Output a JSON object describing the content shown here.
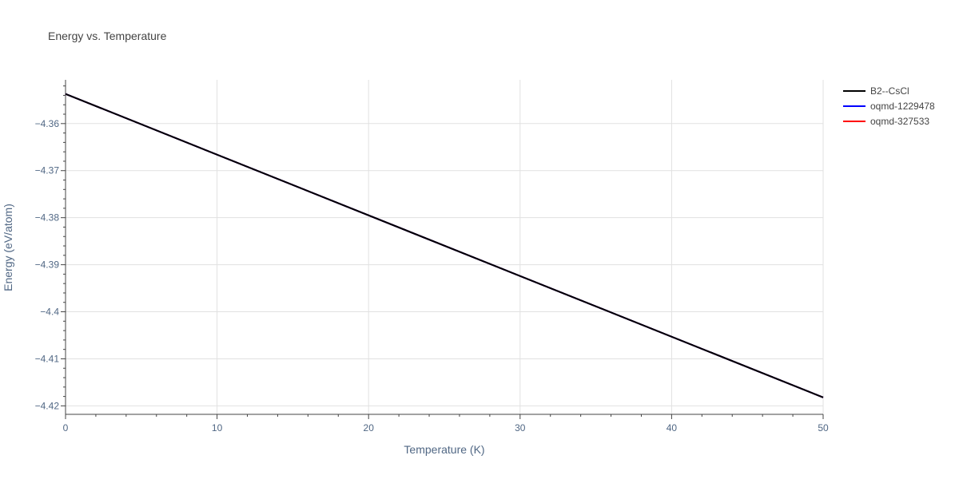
{
  "chart_data": {
    "type": "line",
    "title": "Energy vs. Temperature",
    "xlabel": "Temperature (K)",
    "ylabel": "Energy (eV/atom)",
    "xlim": [
      0,
      50
    ],
    "ylim": [
      -4.4218,
      -4.3507
    ],
    "x_ticks": [
      0,
      10,
      20,
      30,
      40,
      50
    ],
    "y_ticks": [
      -4.36,
      -4.37,
      -4.38,
      -4.39,
      -4.4,
      -4.41,
      -4.42
    ],
    "y_tick_labels": [
      "−4.36",
      "−4.37",
      "−4.38",
      "−4.39",
      "−4.4",
      "−4.41",
      "−4.42"
    ],
    "grid": true,
    "legend_position": "top-right",
    "series": [
      {
        "name": "oqmd-327533",
        "color": "#ff0000",
        "x": [
          0,
          50
        ],
        "y": [
          -4.3537,
          -4.4182
        ]
      },
      {
        "name": "oqmd-1229478",
        "color": "#0000ff",
        "x": [
          0,
          50
        ],
        "y": [
          -4.3537,
          -4.4182
        ]
      },
      {
        "name": "B2--CsCl",
        "color": "#000000",
        "x": [
          0,
          50
        ],
        "y": [
          -4.3537,
          -4.4182
        ]
      }
    ],
    "legend": [
      {
        "name": "B2--CsCl",
        "color": "#000000"
      },
      {
        "name": "oqmd-1229478",
        "color": "#0000ff"
      },
      {
        "name": "oqmd-327533",
        "color": "#ff0000"
      }
    ]
  }
}
